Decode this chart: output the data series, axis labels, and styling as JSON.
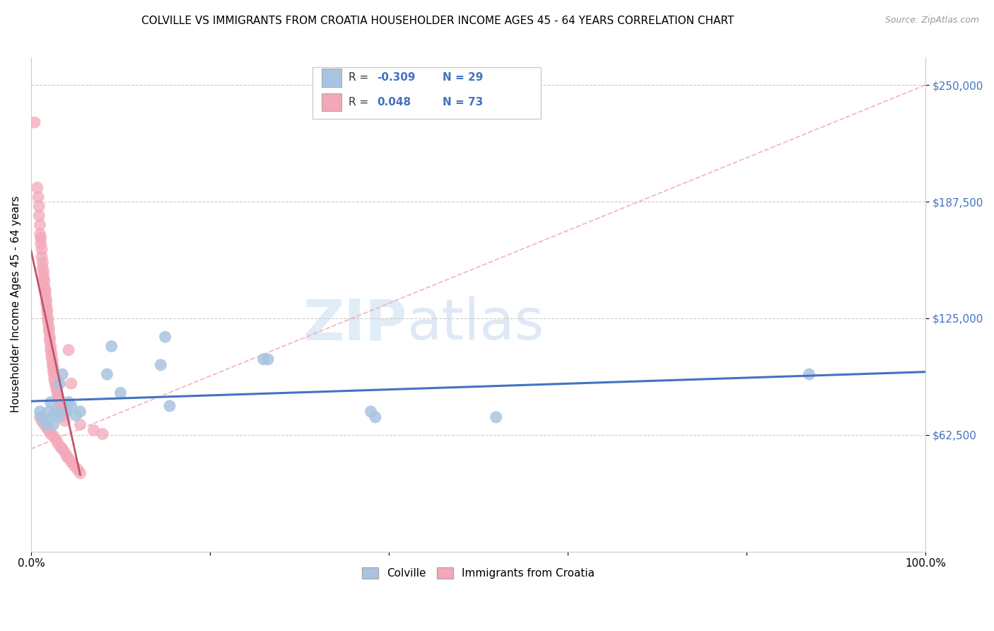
{
  "title": "COLVILLE VS IMMIGRANTS FROM CROATIA HOUSEHOLDER INCOME AGES 45 - 64 YEARS CORRELATION CHART",
  "source": "Source: ZipAtlas.com",
  "ylabel": "Householder Income Ages 45 - 64 years",
  "y_ticks": [
    62500,
    125000,
    187500,
    250000
  ],
  "y_tick_labels": [
    "$62,500",
    "$125,000",
    "$187,500",
    "$250,000"
  ],
  "legend_colville": "Colville",
  "legend_croatia": "Immigrants from Croatia",
  "R_colville": -0.309,
  "N_colville": 29,
  "R_croatia": 0.048,
  "N_croatia": 73,
  "colville_color": "#a8c4e0",
  "croatia_color": "#f4a7b9",
  "colville_line_color": "#4472c4",
  "croatia_line_color": "#c0556a",
  "colville_scatter": {
    "x": [
      0.01,
      0.012,
      0.015,
      0.018,
      0.02,
      0.022,
      0.025,
      0.025,
      0.028,
      0.03,
      0.032,
      0.035,
      0.04,
      0.042,
      0.045,
      0.05,
      0.055,
      0.085,
      0.09,
      0.1,
      0.145,
      0.15,
      0.26,
      0.265,
      0.38,
      0.385,
      0.52,
      0.87,
      0.155
    ],
    "y": [
      75000,
      72000,
      70000,
      68000,
      75000,
      80000,
      73000,
      68000,
      75000,
      72000,
      90000,
      95000,
      75000,
      80000,
      78000,
      73000,
      75000,
      95000,
      110000,
      85000,
      100000,
      115000,
      103000,
      103000,
      75000,
      72000,
      72000,
      95000,
      78000
    ]
  },
  "croatia_scatter": {
    "x": [
      0.004,
      0.007,
      0.008,
      0.009,
      0.009,
      0.01,
      0.01,
      0.011,
      0.011,
      0.012,
      0.012,
      0.013,
      0.013,
      0.014,
      0.014,
      0.015,
      0.015,
      0.016,
      0.016,
      0.017,
      0.017,
      0.018,
      0.018,
      0.019,
      0.019,
      0.02,
      0.02,
      0.021,
      0.021,
      0.022,
      0.022,
      0.023,
      0.023,
      0.024,
      0.024,
      0.025,
      0.025,
      0.026,
      0.026,
      0.027,
      0.028,
      0.029,
      0.03,
      0.031,
      0.032,
      0.033,
      0.034,
      0.035,
      0.036,
      0.038,
      0.042,
      0.045,
      0.055,
      0.07,
      0.08,
      0.01,
      0.012,
      0.015,
      0.018,
      0.02,
      0.022,
      0.025,
      0.028,
      0.03,
      0.033,
      0.035,
      0.038,
      0.04,
      0.042,
      0.045,
      0.048,
      0.052,
      0.055
    ],
    "y": [
      230000,
      195000,
      190000,
      185000,
      180000,
      175000,
      170000,
      168000,
      165000,
      162000,
      158000,
      155000,
      152000,
      150000,
      147000,
      145000,
      142000,
      140000,
      138000,
      135000,
      133000,
      130000,
      128000,
      125000,
      123000,
      120000,
      118000,
      115000,
      113000,
      110000,
      108000,
      106000,
      104000,
      102000,
      100000,
      98000,
      96000,
      94000,
      92000,
      90000,
      88000,
      86000,
      84000,
      82000,
      80000,
      78000,
      76000,
      75000,
      73000,
      70000,
      108000,
      90000,
      68000,
      65000,
      63000,
      72000,
      70000,
      68000,
      66000,
      65000,
      63000,
      62000,
      60000,
      58000,
      56000,
      55000,
      53000,
      51000,
      50000,
      48000,
      46000,
      44000,
      42000
    ]
  },
  "xlim": [
    0,
    1.0
  ],
  "ylim": [
    0,
    265000
  ],
  "watermark_zip": "ZIP",
  "watermark_atlas": "atlas",
  "title_fontsize": 11,
  "source_fontsize": 9,
  "tick_color": "#4472c4",
  "axis_color": "#cccccc"
}
